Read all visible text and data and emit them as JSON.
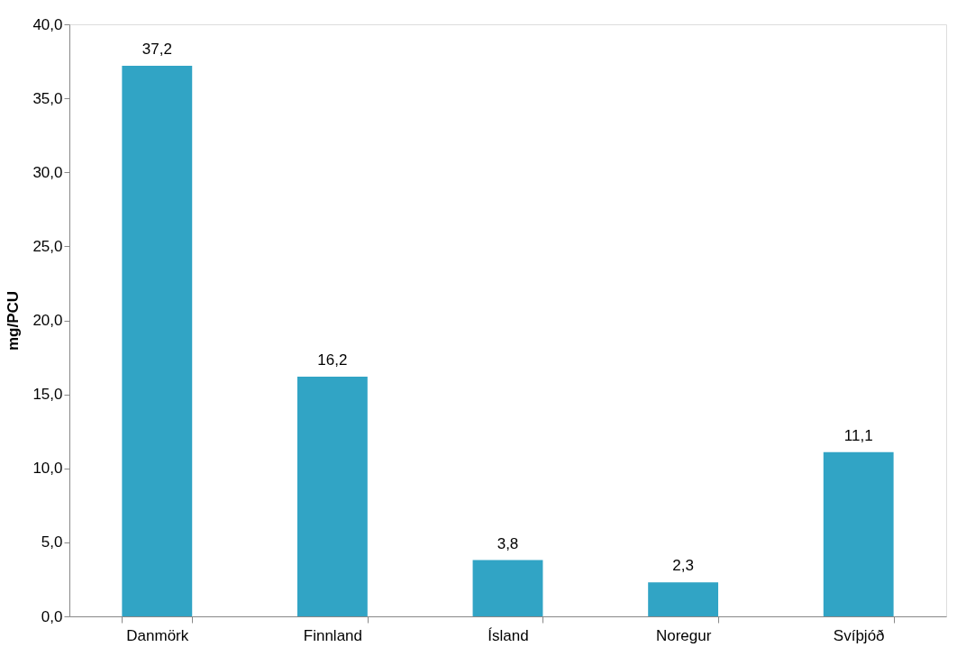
{
  "chart_data": {
    "type": "bar",
    "ylabel": "mg/PCU",
    "categories": [
      "Danmörk",
      "Finnland",
      "Ísland",
      "Noregur",
      "Svíþjóð"
    ],
    "values": [
      37.2,
      16.2,
      3.8,
      2.3,
      11.1
    ],
    "value_labels": [
      "37,2",
      "16,2",
      "3,8",
      "2,3",
      "11,1"
    ],
    "color": "#31a4c5",
    "ylim": [
      0,
      40
    ],
    "yticks": [
      {
        "value": 0,
        "label": "0,0"
      },
      {
        "value": 5,
        "label": "5,0"
      },
      {
        "value": 10,
        "label": "10,0"
      },
      {
        "value": 15,
        "label": "15,0"
      },
      {
        "value": 20,
        "label": "20,0"
      },
      {
        "value": 25,
        "label": "25,0"
      },
      {
        "value": 30,
        "label": "30,0"
      },
      {
        "value": 35,
        "label": "35,0"
      },
      {
        "value": 40,
        "label": "40,0"
      }
    ],
    "grid": false
  }
}
